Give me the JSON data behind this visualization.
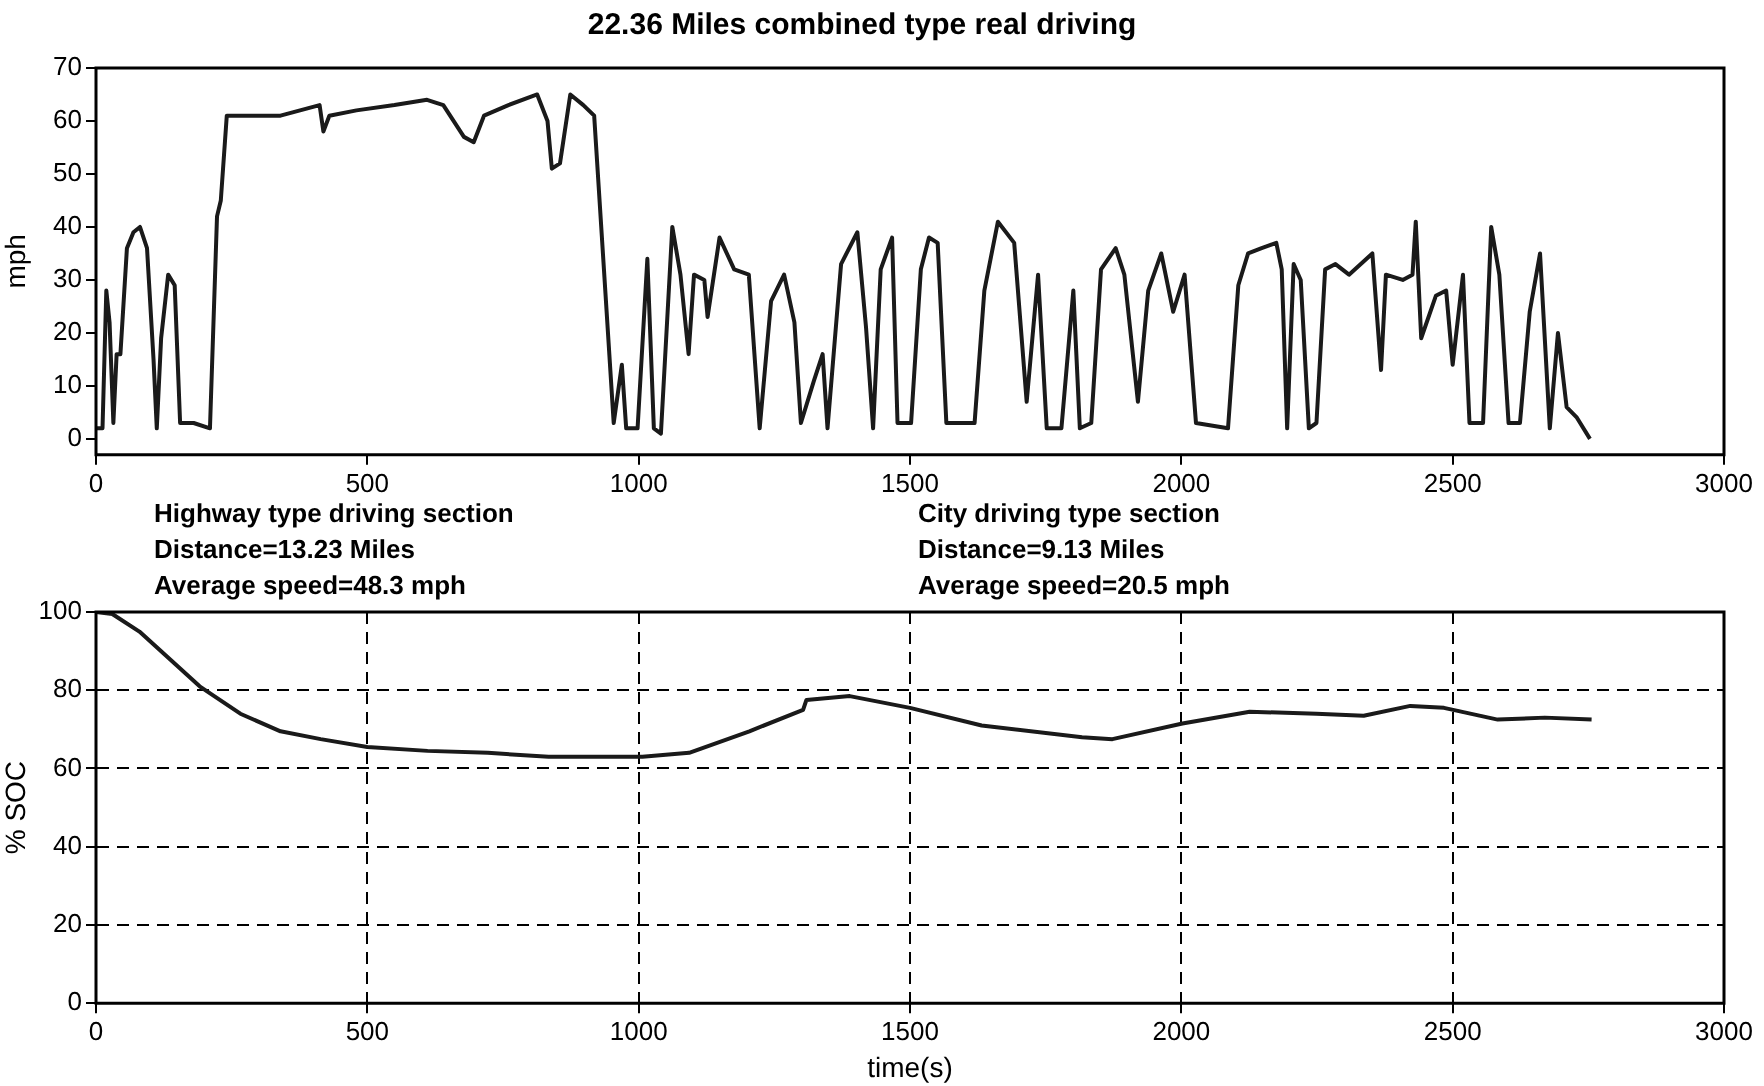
{
  "chart_data": [
    {
      "type": "line",
      "title": "22.36 Miles combined type real driving",
      "ylabel": "mph",
      "x": [
        0,
        5,
        12,
        19,
        25,
        32,
        38,
        45,
        57,
        69,
        81,
        94,
        106,
        112,
        120,
        133,
        145,
        155,
        180,
        210,
        223,
        230,
        241,
        290,
        340,
        412,
        419,
        430,
        480,
        550,
        610,
        640,
        678,
        696,
        715,
        760,
        813,
        832,
        840,
        855,
        874,
        898,
        918,
        954,
        969,
        977,
        990,
        998,
        1016,
        1028,
        1041,
        1062,
        1077,
        1092,
        1102,
        1121,
        1127,
        1149,
        1176,
        1203,
        1223,
        1244,
        1268,
        1287,
        1299,
        1323,
        1339,
        1348,
        1373,
        1403,
        1419,
        1432,
        1446,
        1467,
        1477,
        1502,
        1520,
        1535,
        1551,
        1567,
        1619,
        1637,
        1662,
        1692,
        1715,
        1736,
        1752,
        1779,
        1801,
        1813,
        1834,
        1852,
        1879,
        1895,
        1920,
        1939,
        1963,
        1985,
        2006,
        2027,
        2086,
        2105,
        2123,
        2148,
        2175,
        2185,
        2195,
        2207,
        2220,
        2235,
        2249,
        2265,
        2284,
        2309,
        2352,
        2368,
        2377,
        2408,
        2426,
        2432,
        2442,
        2469,
        2488,
        2500,
        2519,
        2531,
        2556,
        2571,
        2586,
        2603,
        2624,
        2642,
        2661,
        2679,
        2694,
        2710,
        2729,
        2753
      ],
      "series": [
        {
          "color": "#1a1a1a",
          "values": [
            2,
            2,
            2,
            28,
            22,
            3,
            16,
            16,
            36,
            39,
            40,
            36,
            15,
            2,
            19,
            31,
            29,
            3,
            3,
            2,
            42,
            45,
            61,
            61,
            61,
            63,
            58,
            61,
            62,
            63,
            64,
            63,
            57,
            56,
            61,
            63,
            65,
            60,
            51,
            52,
            65,
            63,
            61,
            3,
            14,
            2,
            2,
            2,
            34,
            2,
            1,
            40,
            31,
            16,
            31,
            30,
            23,
            38,
            32,
            31,
            2,
            26,
            31,
            22,
            3,
            11,
            16,
            2,
            33,
            39,
            21,
            2,
            32,
            38,
            3,
            3,
            32,
            38,
            37,
            3,
            3,
            28,
            41,
            37,
            7,
            31,
            2,
            2,
            28,
            2,
            3,
            32,
            36,
            31,
            7,
            28,
            35,
            24,
            31,
            3,
            2,
            29,
            35,
            36,
            37,
            32,
            2,
            33,
            30,
            2,
            3,
            32,
            33,
            31,
            35,
            13,
            31,
            30,
            31,
            41,
            19,
            27,
            28,
            14,
            31,
            3,
            3,
            40,
            31,
            3,
            3,
            24,
            35,
            2,
            20,
            6,
            4,
            0
          ]
        }
      ],
      "xlim": [
        0,
        3000
      ],
      "xticks": [
        0,
        500,
        1000,
        1500,
        2000,
        2500,
        3000
      ],
      "ylim": [
        -3,
        70
      ],
      "yticks": [
        0,
        10,
        20,
        30,
        40,
        50,
        60,
        70
      ],
      "annotations": [
        "Highway type driving section",
        "Distance=13.23 Miles",
        "Average speed=48.3 mph",
        "City driving type section",
        "Distance=9.13 Miles",
        "Average speed=20.5 mph"
      ]
    },
    {
      "type": "line",
      "xlabel": "time(s)",
      "ylabel": "% SOC",
      "x": [
        0,
        30,
        80,
        191,
        266,
        340,
        414,
        500,
        611,
        722,
        834,
        1007,
        1093,
        1204,
        1303,
        1309,
        1389,
        1500,
        1632,
        1817,
        1873,
        2002,
        2126,
        2249,
        2336,
        2422,
        2484,
        2583,
        2670,
        2756
      ],
      "series": [
        {
          "color": "#1a1a1a",
          "values": [
            100,
            99.5,
            95,
            81,
            74,
            69.5,
            67.5,
            65.5,
            64.5,
            64,
            63,
            63,
            64,
            69.5,
            75,
            77.5,
            78.5,
            75.5,
            71,
            68,
            67.5,
            71.5,
            74.5,
            74,
            73.5,
            76,
            75.5,
            72.5,
            73,
            72.5
          ]
        }
      ],
      "xlim": [
        0,
        3000
      ],
      "xticks": [
        0,
        500,
        1000,
        1500,
        2000,
        2500,
        3000
      ],
      "ylim": [
        0,
        100
      ],
      "yticks": [
        0,
        20,
        40,
        60,
        80,
        100
      ],
      "grid": true
    }
  ]
}
